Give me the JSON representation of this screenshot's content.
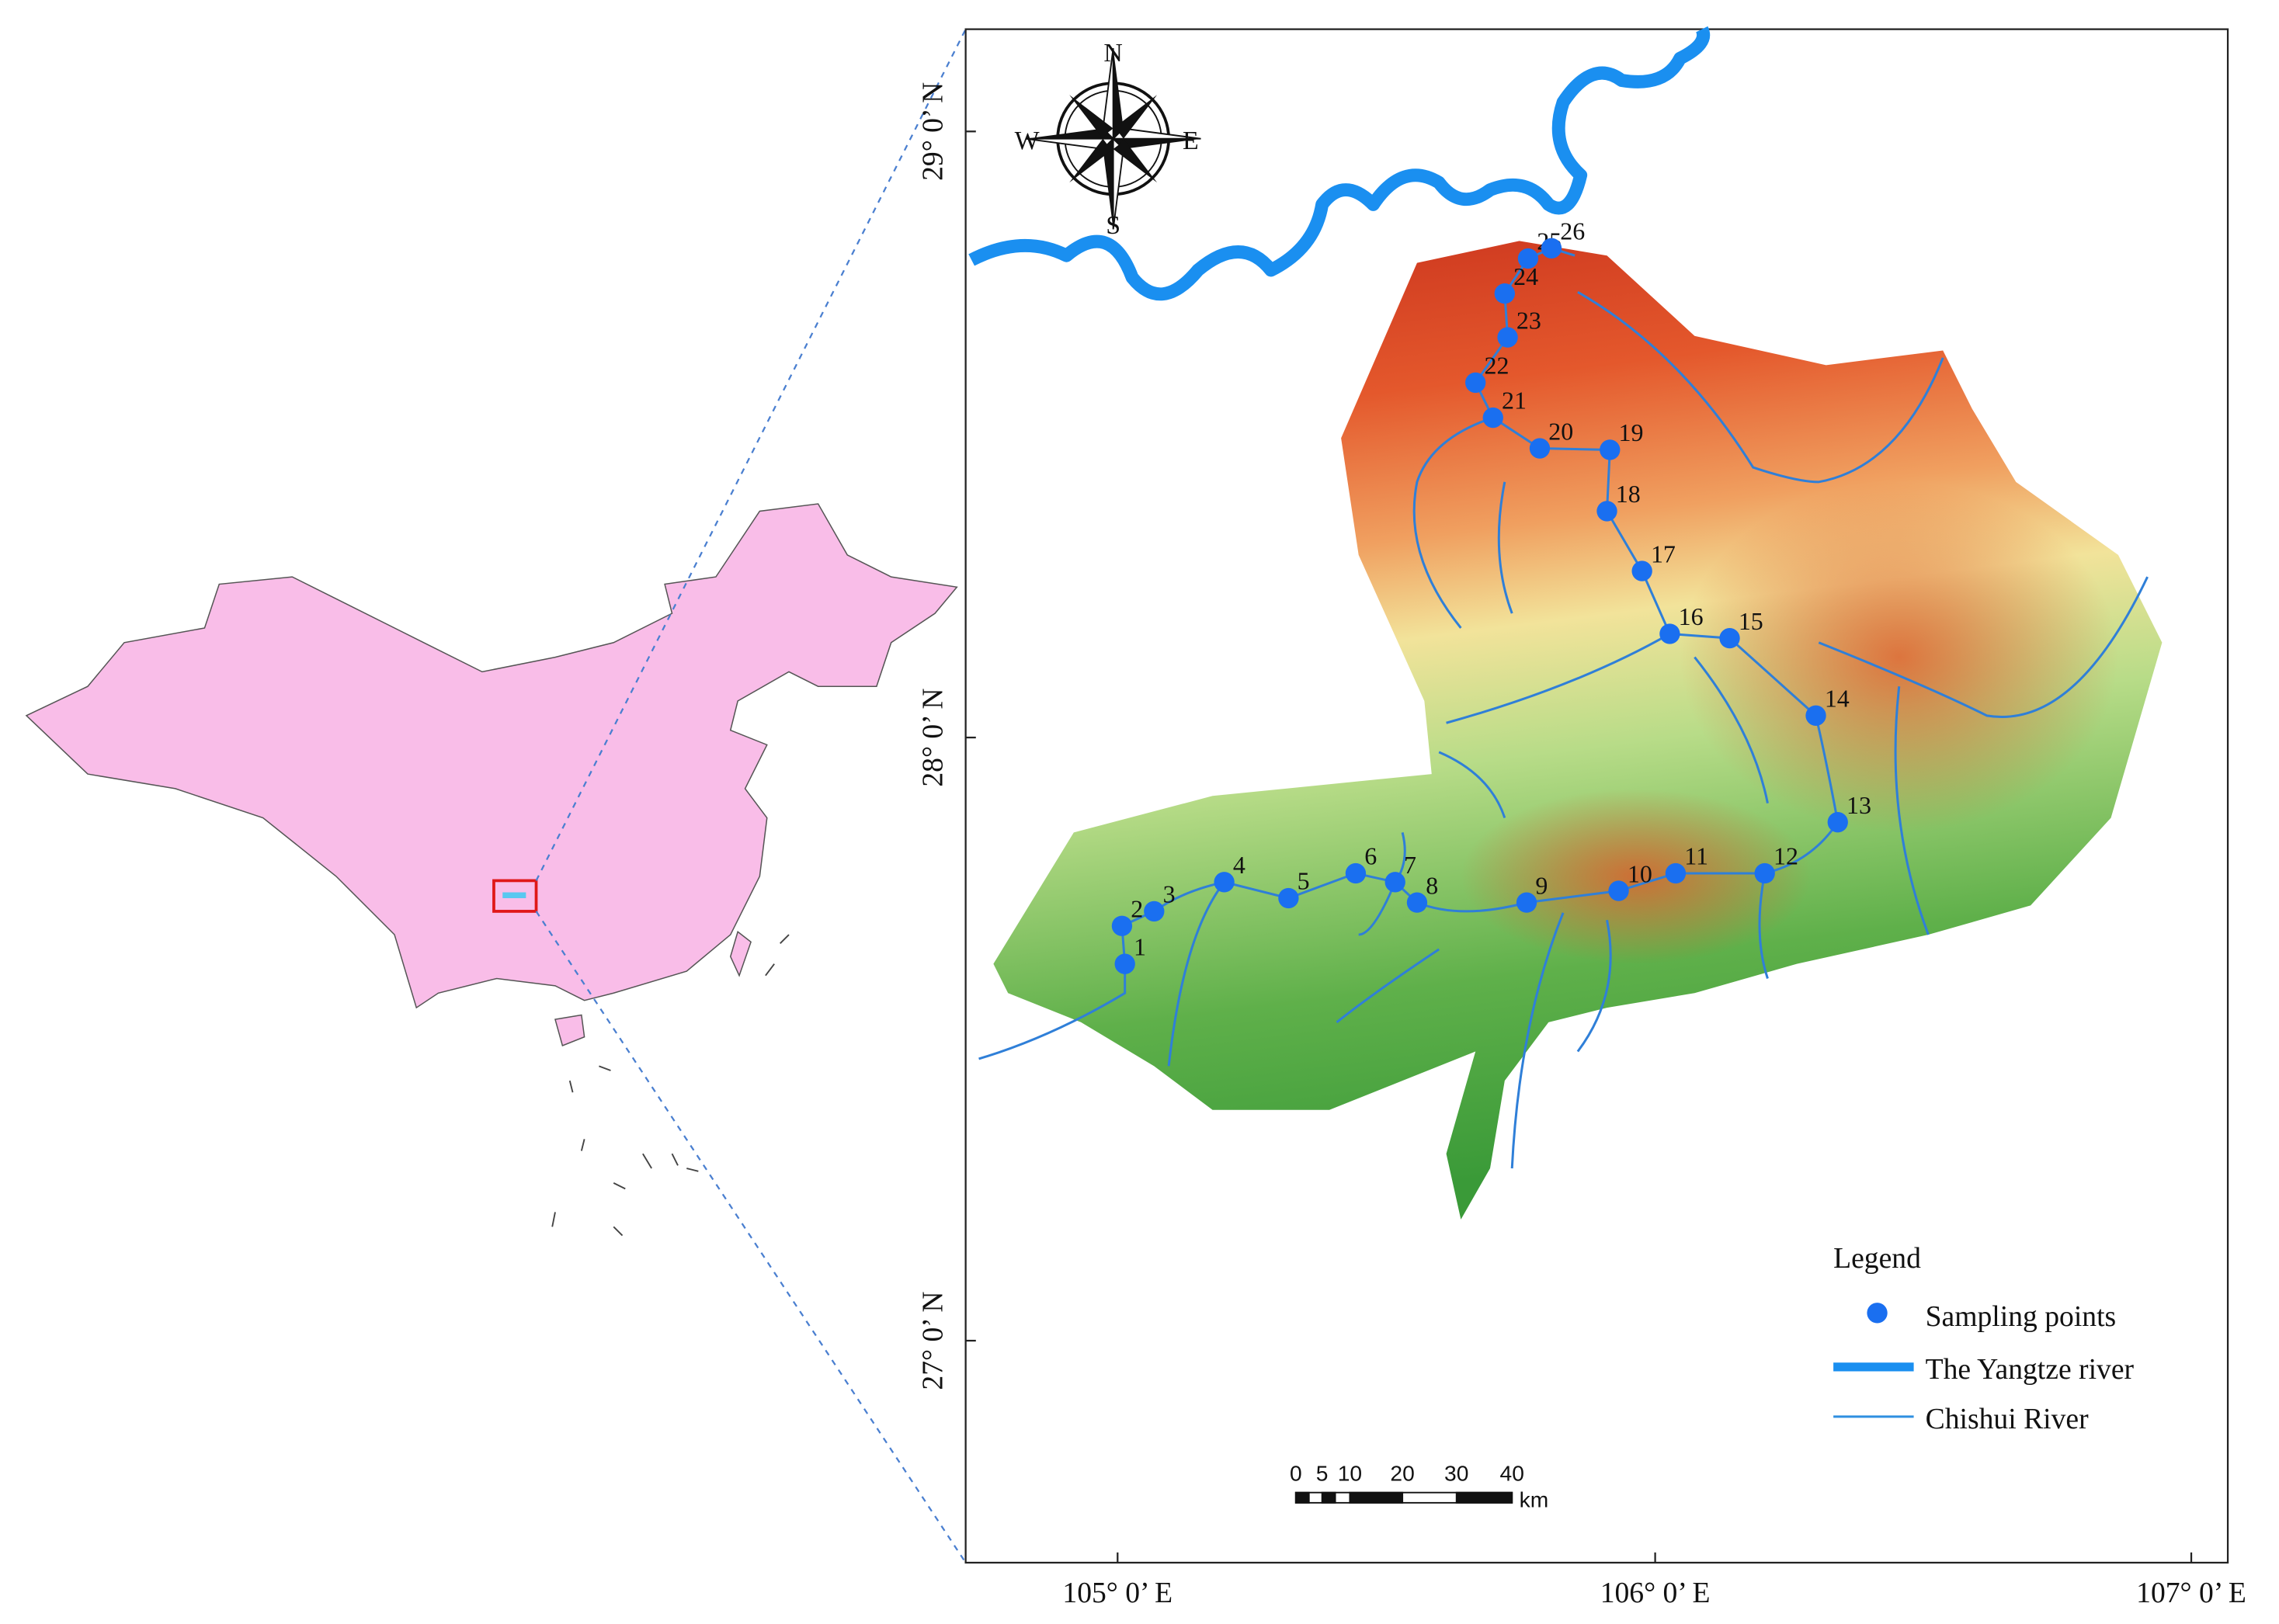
{
  "compass": {
    "north": "N",
    "south": "S",
    "east": "E",
    "west": "W"
  },
  "latitude_labels": [
    "29° 0’ N",
    "28° 0’ N",
    "27° 0’ N"
  ],
  "longitude_labels": [
    "105° 0’ E",
    "106° 0’ E",
    "107° 0’ E"
  ],
  "sampling_points": [
    "1",
    "2",
    "3",
    "4",
    "5",
    "6",
    "7",
    "8",
    "9",
    "10",
    "11",
    "12",
    "13",
    "14",
    "15",
    "16",
    "17",
    "18",
    "19",
    "20",
    "21",
    "22",
    "23",
    "24",
    "25",
    "26"
  ],
  "legend": {
    "title": "Legend",
    "items": [
      "Sampling points",
      "The Yangtze river",
      "Chishui River"
    ]
  },
  "scale_bar": {
    "labels": [
      "0",
      "5",
      "10",
      "20",
      "30",
      "40"
    ],
    "unit": "km"
  }
}
